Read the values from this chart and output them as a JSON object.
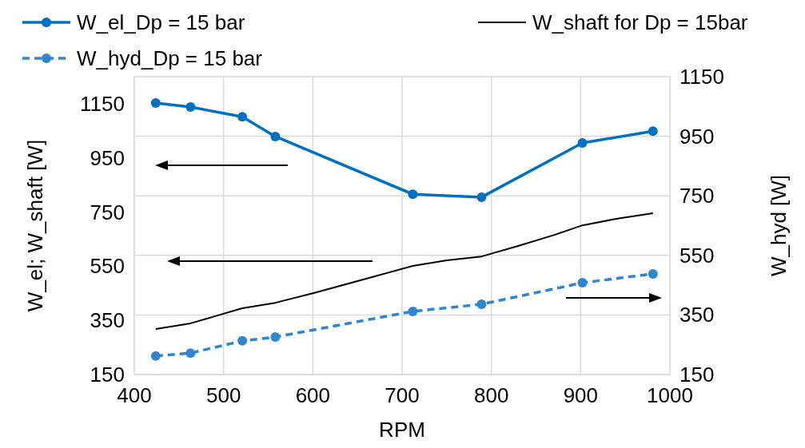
{
  "chart_data": {
    "type": "line",
    "xlabel": "RPM",
    "ylabel": "W_el; W_shaft [W]",
    "y2label": "W_hyd [W]",
    "xlim": [
      400,
      1000
    ],
    "xticks": [
      400,
      500,
      600,
      700,
      800,
      900,
      1000
    ],
    "ylim": [
      150,
      1250
    ],
    "yticks": [
      150,
      350,
      550,
      750,
      950,
      1150
    ],
    "y2lim": [
      150,
      1150
    ],
    "y2ticks": [
      150,
      350,
      550,
      750,
      950,
      1150
    ],
    "grid": true,
    "legend": "top",
    "series": [
      {
        "name": "W_el_Dp = 15 bar",
        "color": "#0070c0",
        "marker": "circle",
        "line_style": "solid",
        "x": [
          424,
          463,
          521,
          558,
          712,
          789,
          902,
          981
        ],
        "values": [
          1153,
          1138,
          1102,
          1029,
          816,
          805,
          1005,
          1049
        ]
      },
      {
        "name": "W_shaft for Dp = 15bar",
        "color": "#000000",
        "marker": "none",
        "line_style": "solid",
        "x": [
          424,
          463,
          490,
          521,
          558,
          600,
          650,
          712,
          750,
          789,
          830,
          870,
          902,
          940,
          981
        ],
        "values": [
          318,
          339,
          365,
          395,
          415,
          450,
          495,
          551,
          572,
          586,
          625,
          665,
          701,
          725,
          746
        ]
      },
      {
        "name": "W_hyd_Dp = 15 bar",
        "color": "#2e86d0",
        "marker": "circle",
        "line_style": "dashed",
        "axis": "y2",
        "x": [
          424,
          463,
          521,
          558,
          712,
          789,
          902,
          981
        ],
        "values": [
          212,
          222,
          263,
          276,
          362,
          386,
          458,
          488
        ]
      }
    ]
  }
}
